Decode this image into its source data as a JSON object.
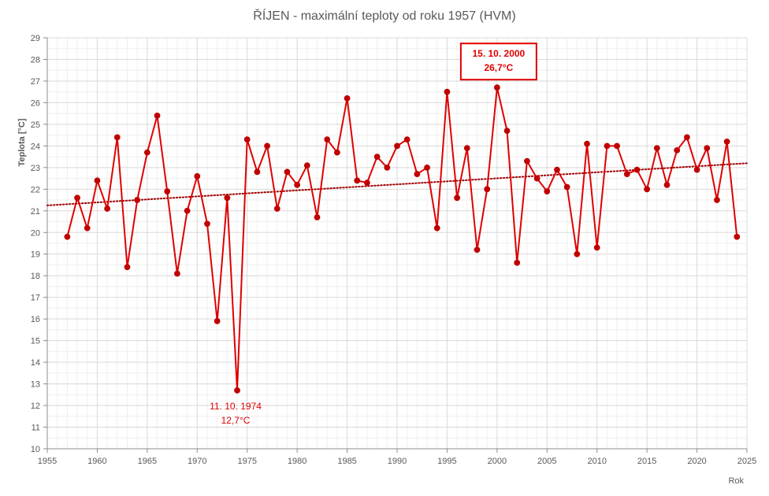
{
  "chart_data": {
    "type": "line",
    "title": "ŘÍJEN - maximální teploty od roku 1957 (HVM)",
    "xlabel": "Rok",
    "ylabel": "Teplota [°C]",
    "xlim": [
      1955,
      2025
    ],
    "ylim": [
      10,
      29
    ],
    "x_ticks": [
      1955,
      1960,
      1965,
      1970,
      1975,
      1980,
      1985,
      1990,
      1995,
      2000,
      2005,
      2010,
      2015,
      2020,
      2025
    ],
    "y_ticks": [
      10,
      11,
      12,
      13,
      14,
      15,
      16,
      17,
      18,
      19,
      20,
      21,
      22,
      23,
      24,
      25,
      26,
      27,
      28,
      29
    ],
    "grid": true,
    "legend": "none",
    "series": [
      {
        "x": [
          1957,
          1958,
          1959,
          1960,
          1961,
          1962,
          1963,
          1964,
          1965,
          1966,
          1967,
          1968,
          1969,
          1970,
          1971,
          1972,
          1973,
          1974,
          1975,
          1976,
          1977,
          1978,
          1979,
          1980,
          1981,
          1982,
          1983,
          1984,
          1985,
          1986,
          1987,
          1988,
          1989,
          1990,
          1991,
          1992,
          1993,
          1994,
          1995,
          1996,
          1997,
          1998,
          1999,
          2000,
          2001,
          2002,
          2003,
          2004,
          2005,
          2006,
          2007,
          2008,
          2009,
          2010,
          2011,
          2012,
          2013,
          2014,
          2015,
          2016,
          2017,
          2018,
          2019,
          2020,
          2021,
          2022,
          2023,
          2024
        ],
        "values": [
          19.8,
          21.6,
          20.2,
          22.4,
          21.1,
          24.4,
          18.4,
          21.5,
          23.7,
          25.4,
          21.9,
          18.1,
          21.0,
          22.6,
          20.4,
          15.9,
          21.6,
          12.7,
          24.3,
          22.8,
          24.0,
          21.1,
          22.8,
          22.2,
          23.1,
          20.7,
          24.3,
          23.7,
          26.2,
          22.4,
          22.3,
          23.5,
          23.0,
          24.0,
          24.3,
          22.7,
          23.0,
          20.2,
          26.5,
          21.6,
          23.9,
          19.2,
          22.0,
          26.7,
          24.7,
          18.6,
          23.3,
          22.5,
          21.9,
          22.9,
          22.1,
          19.0,
          24.1,
          19.3,
          24.0,
          24.0,
          22.7,
          22.9,
          22.0,
          23.9,
          22.2,
          23.8,
          24.4,
          22.9,
          23.9,
          21.5,
          24.2,
          19.8
        ]
      }
    ],
    "trendline": {
      "type": "linear",
      "style": "dotted",
      "x": [
        1955,
        2025
      ],
      "y": [
        21.25,
        23.2
      ]
    },
    "annotations": [
      {
        "lines": [
          "15. 10. 2000",
          "26,7°C"
        ],
        "target": [
          2000,
          26.7
        ],
        "boxed": true
      },
      {
        "lines": [
          "11. 10. 1974",
          "12,7°C"
        ],
        "target": [
          1974,
          12.7
        ],
        "boxed": false
      }
    ],
    "colors": {
      "line": "#e00000",
      "marker": "#c00000",
      "trend": "#a00000",
      "grid": "#d9d9d9",
      "axis_text": "#595959"
    }
  }
}
